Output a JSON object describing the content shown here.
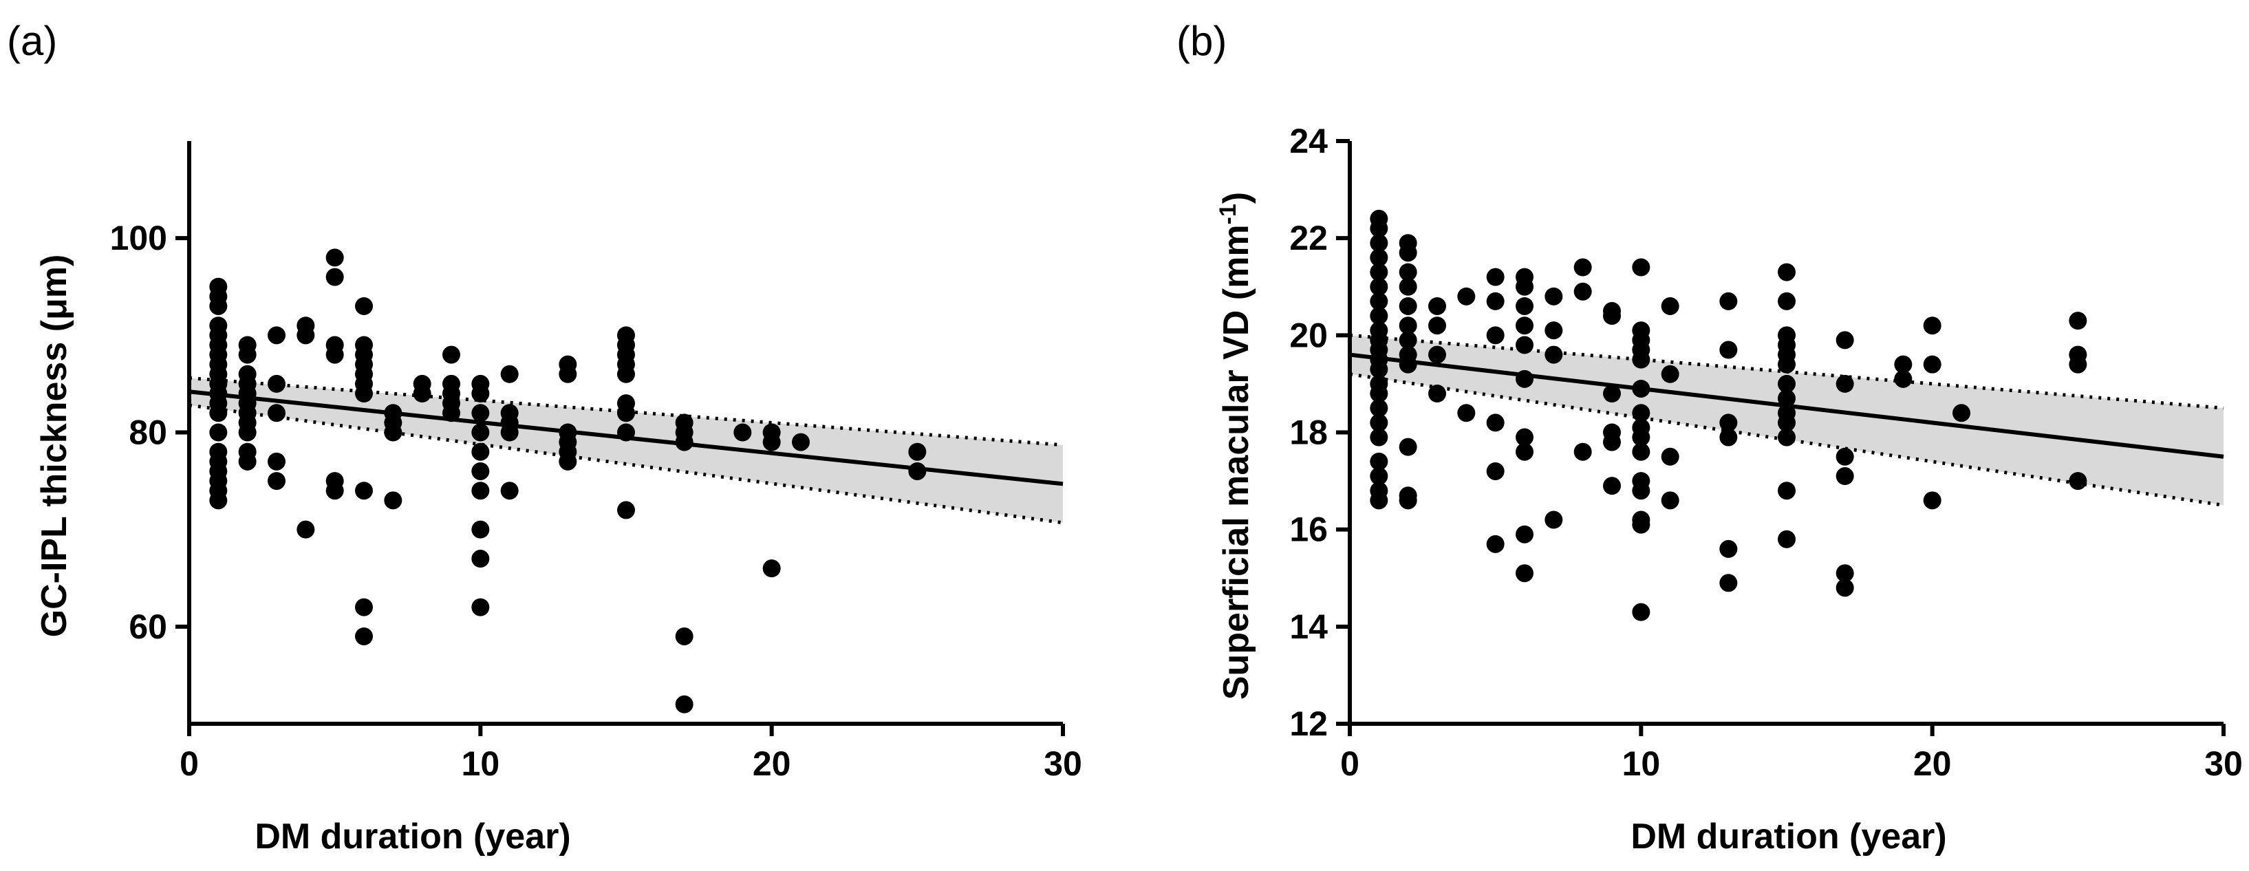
{
  "chart_data": [
    {
      "type": "scatter",
      "panel_label": "(a)",
      "title": "",
      "xlabel": "DM duration (year)",
      "ylabel": "GC-IPL thickness (μm)",
      "xlim": [
        0,
        30
      ],
      "ylim": [
        50,
        110
      ],
      "xticks": [
        0,
        10,
        20,
        30
      ],
      "yticks": [
        60,
        80,
        100
      ],
      "grid": false,
      "regression": {
        "x": [
          0,
          30
        ],
        "y": [
          84.2,
          74.7
        ]
      },
      "ci_upper": {
        "x": [
          0,
          30
        ],
        "y": [
          85.6,
          78.7
        ]
      },
      "ci_lower": {
        "x": [
          0,
          30
        ],
        "y": [
          82.8,
          70.7
        ]
      },
      "points": [
        [
          1,
          95
        ],
        [
          1,
          94
        ],
        [
          1,
          93
        ],
        [
          1,
          91
        ],
        [
          1,
          90
        ],
        [
          1,
          89
        ],
        [
          1,
          88
        ],
        [
          1,
          87
        ],
        [
          1,
          86
        ],
        [
          1,
          85
        ],
        [
          1,
          84
        ],
        [
          1,
          83
        ],
        [
          1,
          82
        ],
        [
          1,
          80
        ],
        [
          1,
          78
        ],
        [
          1,
          77
        ],
        [
          1,
          76
        ],
        [
          1,
          75
        ],
        [
          1,
          74
        ],
        [
          1,
          73
        ],
        [
          2,
          89
        ],
        [
          2,
          88
        ],
        [
          2,
          86
        ],
        [
          2,
          85
        ],
        [
          2,
          84
        ],
        [
          2,
          83
        ],
        [
          2,
          82
        ],
        [
          2,
          81
        ],
        [
          2,
          80
        ],
        [
          2,
          78
        ],
        [
          2,
          77
        ],
        [
          3,
          90
        ],
        [
          3,
          85
        ],
        [
          3,
          82
        ],
        [
          3,
          77
        ],
        [
          3,
          75
        ],
        [
          4,
          91
        ],
        [
          4,
          90
        ],
        [
          4,
          70
        ],
        [
          5,
          98
        ],
        [
          5,
          96
        ],
        [
          5,
          89
        ],
        [
          5,
          88
        ],
        [
          5,
          75
        ],
        [
          5,
          74
        ],
        [
          6,
          93
        ],
        [
          6,
          89
        ],
        [
          6,
          88
        ],
        [
          6,
          87
        ],
        [
          6,
          86
        ],
        [
          6,
          85
        ],
        [
          6,
          84
        ],
        [
          6,
          74
        ],
        [
          6,
          62
        ],
        [
          6,
          59
        ],
        [
          7,
          82
        ],
        [
          7,
          81
        ],
        [
          7,
          80
        ],
        [
          7,
          73
        ],
        [
          8,
          85
        ],
        [
          8,
          84
        ],
        [
          9,
          88
        ],
        [
          9,
          85
        ],
        [
          9,
          84
        ],
        [
          9,
          83
        ],
        [
          9,
          82
        ],
        [
          10,
          85
        ],
        [
          10,
          84
        ],
        [
          10,
          82
        ],
        [
          10,
          80
        ],
        [
          10,
          78
        ],
        [
          10,
          76
        ],
        [
          10,
          74
        ],
        [
          10,
          70
        ],
        [
          10,
          67
        ],
        [
          10,
          62
        ],
        [
          11,
          86
        ],
        [
          11,
          82
        ],
        [
          11,
          81
        ],
        [
          11,
          80
        ],
        [
          11,
          74
        ],
        [
          13,
          87
        ],
        [
          13,
          86
        ],
        [
          13,
          80
        ],
        [
          13,
          79
        ],
        [
          13,
          78
        ],
        [
          13,
          77
        ],
        [
          15,
          90
        ],
        [
          15,
          89
        ],
        [
          15,
          88
        ],
        [
          15,
          87
        ],
        [
          15,
          86
        ],
        [
          15,
          83
        ],
        [
          15,
          82
        ],
        [
          15,
          80
        ],
        [
          15,
          72
        ],
        [
          17,
          81
        ],
        [
          17,
          80
        ],
        [
          17,
          79
        ],
        [
          17,
          59
        ],
        [
          17,
          52
        ],
        [
          19,
          80
        ],
        [
          20,
          80
        ],
        [
          20,
          79
        ],
        [
          20,
          66
        ],
        [
          21,
          79
        ],
        [
          25,
          78
        ],
        [
          25,
          76
        ]
      ]
    },
    {
      "type": "scatter",
      "panel_label": "(b)",
      "title": "",
      "xlabel": "DM duration (year)",
      "ylabel": "Superficial macular VD (mm",
      "ylabel_superscript": "-1",
      "ylabel_suffix": ")",
      "xlim": [
        0,
        30
      ],
      "ylim": [
        12,
        24
      ],
      "xticks": [
        0,
        10,
        20,
        30
      ],
      "yticks": [
        12,
        14,
        16,
        18,
        20,
        22,
        24
      ],
      "grid": false,
      "regression": {
        "x": [
          0,
          30
        ],
        "y": [
          19.6,
          17.5
        ]
      },
      "ci_upper": {
        "x": [
          0,
          30
        ],
        "y": [
          20.0,
          18.5
        ]
      },
      "ci_lower": {
        "x": [
          0,
          30
        ],
        "y": [
          19.2,
          16.5
        ]
      },
      "points": [
        [
          1,
          22.4
        ],
        [
          1,
          22.2
        ],
        [
          1,
          21.9
        ],
        [
          1,
          21.6
        ],
        [
          1,
          21.3
        ],
        [
          1,
          21.0
        ],
        [
          1,
          20.7
        ],
        [
          1,
          20.4
        ],
        [
          1,
          20.1
        ],
        [
          1,
          19.9
        ],
        [
          1,
          19.7
        ],
        [
          1,
          19.5
        ],
        [
          1,
          19.3
        ],
        [
          1,
          19.0
        ],
        [
          1,
          18.8
        ],
        [
          1,
          18.5
        ],
        [
          1,
          18.2
        ],
        [
          1,
          17.9
        ],
        [
          1,
          17.4
        ],
        [
          1,
          17.1
        ],
        [
          1,
          16.8
        ],
        [
          1,
          16.6
        ],
        [
          2,
          21.9
        ],
        [
          2,
          21.7
        ],
        [
          2,
          21.3
        ],
        [
          2,
          21.0
        ],
        [
          2,
          20.6
        ],
        [
          2,
          20.2
        ],
        [
          2,
          19.9
        ],
        [
          2,
          19.6
        ],
        [
          2,
          19.4
        ],
        [
          2,
          17.7
        ],
        [
          2,
          16.7
        ],
        [
          2,
          16.6
        ],
        [
          3,
          20.6
        ],
        [
          3,
          20.2
        ],
        [
          3,
          19.6
        ],
        [
          3,
          18.8
        ],
        [
          4,
          20.8
        ],
        [
          4,
          18.4
        ],
        [
          5,
          21.2
        ],
        [
          5,
          20.7
        ],
        [
          5,
          20.0
        ],
        [
          5,
          18.2
        ],
        [
          5,
          17.2
        ],
        [
          5,
          15.7
        ],
        [
          6,
          21.2
        ],
        [
          6,
          21.0
        ],
        [
          6,
          20.6
        ],
        [
          6,
          20.2
        ],
        [
          6,
          19.8
        ],
        [
          6,
          19.1
        ],
        [
          6,
          17.9
        ],
        [
          6,
          17.6
        ],
        [
          6,
          15.9
        ],
        [
          6,
          15.1
        ],
        [
          7,
          20.8
        ],
        [
          7,
          20.1
        ],
        [
          7,
          19.6
        ],
        [
          7,
          16.2
        ],
        [
          8,
          21.4
        ],
        [
          8,
          20.9
        ],
        [
          8,
          17.6
        ],
        [
          9,
          20.5
        ],
        [
          9,
          20.4
        ],
        [
          9,
          18.8
        ],
        [
          9,
          18.0
        ],
        [
          9,
          17.8
        ],
        [
          9,
          16.9
        ],
        [
          10,
          21.4
        ],
        [
          10,
          20.1
        ],
        [
          10,
          19.9
        ],
        [
          10,
          19.7
        ],
        [
          10,
          19.5
        ],
        [
          10,
          18.9
        ],
        [
          10,
          18.4
        ],
        [
          10,
          18.1
        ],
        [
          10,
          17.9
        ],
        [
          10,
          17.6
        ],
        [
          10,
          17.0
        ],
        [
          10,
          16.8
        ],
        [
          10,
          16.2
        ],
        [
          10,
          16.1
        ],
        [
          10,
          14.3
        ],
        [
          11,
          20.6
        ],
        [
          11,
          19.2
        ],
        [
          11,
          17.5
        ],
        [
          11,
          16.6
        ],
        [
          13,
          20.7
        ],
        [
          13,
          19.7
        ],
        [
          13,
          18.2
        ],
        [
          13,
          17.9
        ],
        [
          13,
          15.6
        ],
        [
          13,
          14.9
        ],
        [
          15,
          21.3
        ],
        [
          15,
          20.7
        ],
        [
          15,
          20.0
        ],
        [
          15,
          19.8
        ],
        [
          15,
          19.6
        ],
        [
          15,
          19.4
        ],
        [
          15,
          19.0
        ],
        [
          15,
          18.7
        ],
        [
          15,
          18.4
        ],
        [
          15,
          18.2
        ],
        [
          15,
          17.9
        ],
        [
          15,
          16.8
        ],
        [
          15,
          15.8
        ],
        [
          17,
          19.9
        ],
        [
          17,
          19.0
        ],
        [
          17,
          17.5
        ],
        [
          17,
          17.1
        ],
        [
          17,
          15.1
        ],
        [
          17,
          14.8
        ],
        [
          19,
          19.4
        ],
        [
          19,
          19.1
        ],
        [
          20,
          20.2
        ],
        [
          20,
          19.4
        ],
        [
          20,
          16.6
        ],
        [
          21,
          18.4
        ],
        [
          25,
          20.3
        ],
        [
          25,
          19.6
        ],
        [
          25,
          19.4
        ],
        [
          25,
          17.0
        ]
      ]
    }
  ]
}
